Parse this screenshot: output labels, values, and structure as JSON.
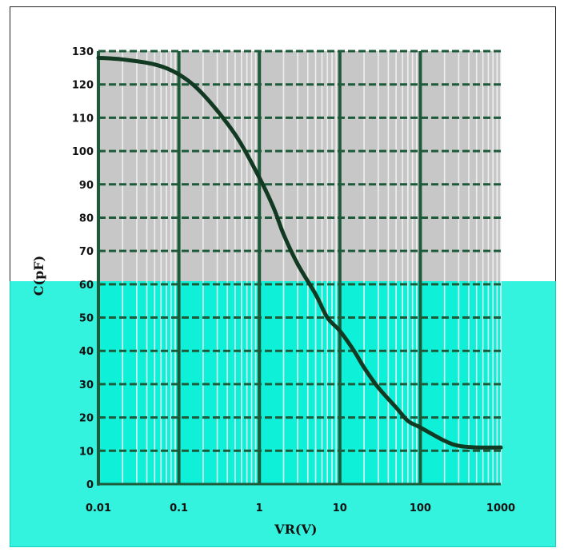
{
  "chart_data": {
    "type": "line",
    "xlabel": "VR(V)",
    "ylabel": "C(pF)",
    "x_scale": "log",
    "xlim": [
      0.01,
      1000
    ],
    "ylim": [
      0,
      130
    ],
    "x_ticks": [
      "0.01",
      "0.1",
      "1",
      "10",
      "100",
      "1000"
    ],
    "y_ticks": [
      "0",
      "10",
      "20",
      "30",
      "40",
      "50",
      "60",
      "70",
      "80",
      "90",
      "100",
      "110",
      "120",
      "130"
    ],
    "grid": true,
    "series": [
      {
        "x": [
          0.01,
          0.02,
          0.05,
          0.1,
          0.2,
          0.5,
          1,
          1.5,
          2,
          3,
          5,
          7,
          10,
          15,
          20,
          30,
          50,
          70,
          100,
          200,
          300,
          500,
          1000
        ],
        "y": [
          128,
          127.5,
          126,
          123,
          117,
          105,
          92,
          83,
          75,
          66,
          57,
          50,
          46,
          40,
          35,
          29,
          23,
          19,
          17,
          13,
          11.5,
          11,
          11
        ]
      }
    ]
  },
  "colors": {
    "plot_upper": "#c7c7c7",
    "plot_lower": "#0ff0d8",
    "overlay": "#55fff0",
    "grid": "#1d5a3a",
    "curve": "#123a22"
  }
}
